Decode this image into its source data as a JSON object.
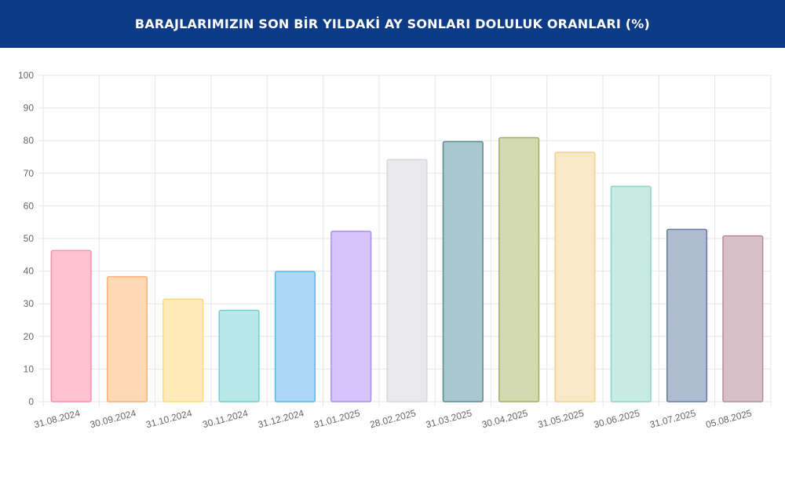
{
  "header": {
    "title": "BARAJLARIMIZIN SON BİR YILDAKİ AY SONLARI DOLULUK ORANLARI (%)"
  },
  "colors": {
    "header_bg": "#0d3b86",
    "grid": "#e6e6e6",
    "axis_text": "#666666"
  },
  "chart_data": {
    "type": "bar",
    "title": "BARAJLARIMIZIN SON BİR YILDAKİ AY SONLARI DOLULUK ORANLARI (%)",
    "xlabel": "",
    "ylabel": "",
    "ylim": [
      0,
      100
    ],
    "yticks": [
      0,
      10,
      20,
      30,
      40,
      50,
      60,
      70,
      80,
      90,
      100
    ],
    "grid": true,
    "legend": "none",
    "categories": [
      "31.08.2024",
      "30.09.2024",
      "31.10.2024",
      "30.11.2024",
      "31.12.2024",
      "31.01.2025",
      "28.02.2025",
      "31.03.2025",
      "30.04.2025",
      "31.05.2025",
      "30.06.2025",
      "31.07.2025",
      "05.08.2025"
    ],
    "values": [
      46.3,
      38.3,
      31.4,
      28.0,
      39.9,
      52.2,
      74.2,
      79.7,
      80.9,
      76.4,
      66.0,
      52.8,
      50.8
    ],
    "bar_fill": [
      "#ffc2d0",
      "#ffd9b3",
      "#ffeab8",
      "#b8e9e9",
      "#aad8f5",
      "#d5c3f9",
      "#e9e9ec",
      "#a9c7cc",
      "#d3dab1",
      "#f8e8c6",
      "#c6ebe2",
      "#aebbd0",
      "#d7c0c8"
    ],
    "bar_stroke": [
      "#ff8fab",
      "#ffb073",
      "#ffd978",
      "#6fd0d0",
      "#5bb6ec",
      "#a98ef2",
      "#d7d7dc",
      "#5b8892",
      "#a3ad64",
      "#efd08e",
      "#8fd4c4",
      "#687a9b",
      "#b38d9a"
    ]
  }
}
